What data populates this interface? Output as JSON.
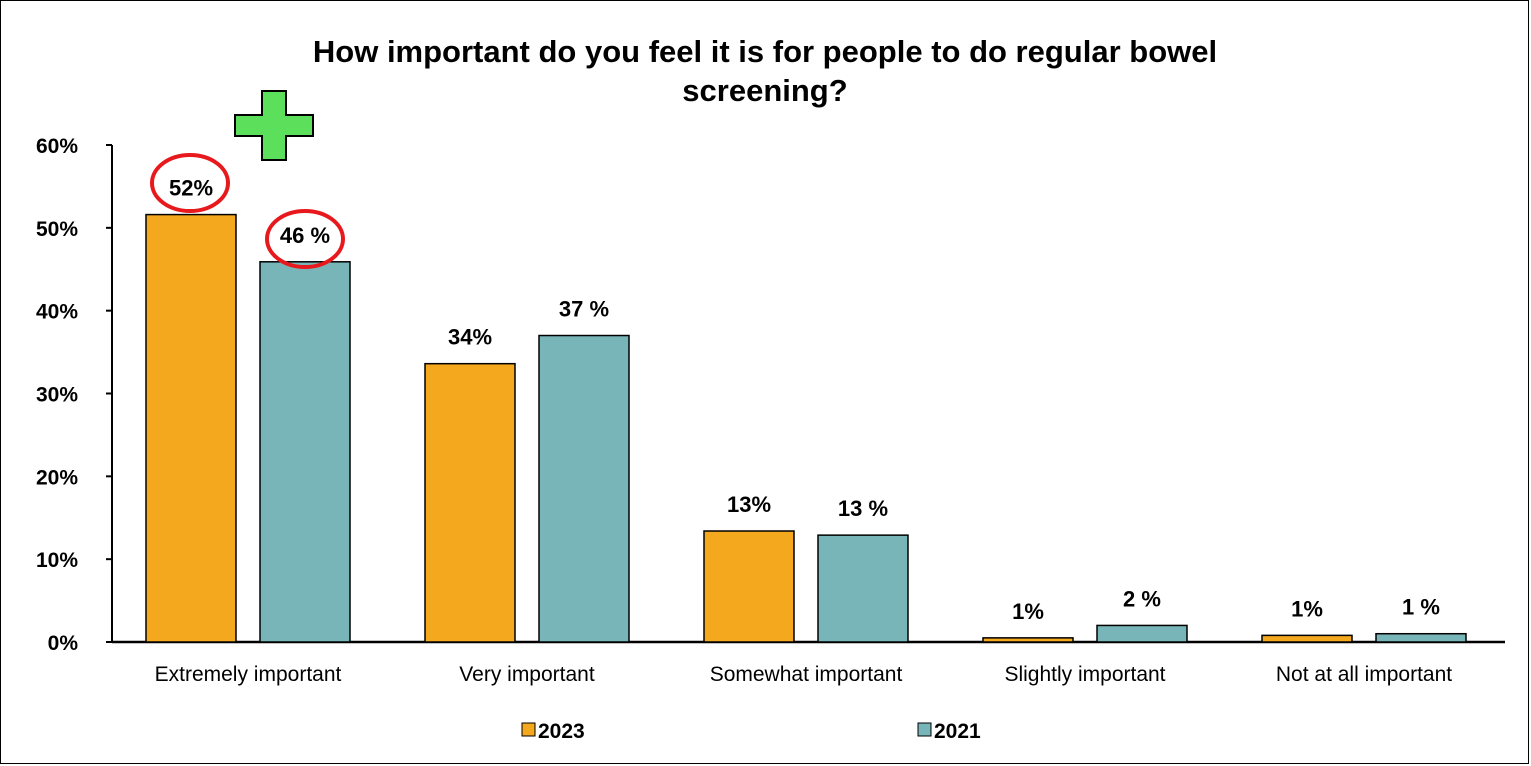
{
  "chart_data": {
    "type": "bar",
    "title_lines": [
      "How important do you feel it is for people to do regular bowel",
      "screening?"
    ],
    "categories": [
      "Extremely important",
      "Very important",
      "Somewhat important",
      "Slightly important",
      "Not at all important"
    ],
    "series": [
      {
        "name": "2023",
        "color": "#F4A81E",
        "values": [
          51.6,
          33.6,
          13.4,
          0.5,
          0.8
        ],
        "labels": [
          "52%",
          "34%",
          "13%",
          "1%",
          "1%"
        ]
      },
      {
        "name": "2021",
        "color": "#78B5B8",
        "values": [
          45.9,
          37.0,
          12.9,
          2.0,
          1.0
        ],
        "labels": [
          "46 %",
          "37 %",
          "13 %",
          "2 %",
          "1 %"
        ]
      }
    ],
    "y_ticks": [
      "0%",
      "10%",
      "20%",
      "30%",
      "40%",
      "50%",
      "60%"
    ],
    "ylim": [
      0,
      60
    ],
    "grid": false,
    "legend_position": "bottom",
    "annotations": {
      "highlight_circles": "red outlines around 52% and 46 %",
      "plus_sign": "green cross near the Extremely important group"
    },
    "colors": {
      "highlight": "#E8191C",
      "plus": "#5CE05C"
    }
  }
}
